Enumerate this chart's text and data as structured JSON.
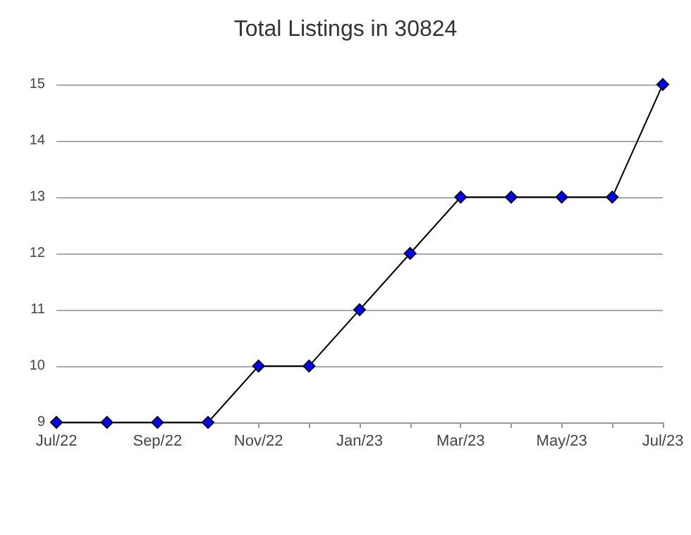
{
  "chart_data": {
    "type": "line",
    "title": "Total Listings in 30824",
    "categories": [
      "Jul/22",
      null,
      "Sep/22",
      null,
      "Nov/22",
      null,
      "Jan/23",
      null,
      "Mar/23",
      null,
      "May/23",
      null,
      "Jul/23"
    ],
    "series": [
      {
        "color": "#0000ff",
        "values": [
          9,
          9,
          9,
          9,
          10,
          10,
          11,
          12,
          13,
          13,
          13,
          13,
          15
        ]
      }
    ],
    "ylim": [
      9,
      15
    ],
    "yticks": [
      9,
      10,
      11,
      12,
      13,
      14,
      15
    ],
    "grid": "y",
    "marker": "diamond",
    "line_style": "solid"
  }
}
